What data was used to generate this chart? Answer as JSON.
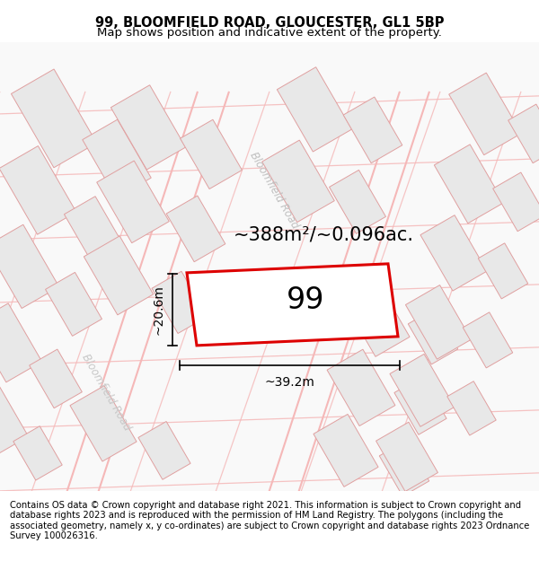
{
  "title_line1": "99, BLOOMFIELD ROAD, GLOUCESTER, GL1 5BP",
  "title_line2": "Map shows position and indicative extent of the property.",
  "footer_text": "Contains OS data © Crown copyright and database right 2021. This information is subject to Crown copyright and database rights 2023 and is reproduced with the permission of HM Land Registry. The polygons (including the associated geometry, namely x, y co-ordinates) are subject to Crown copyright and database rights 2023 Ordnance Survey 100026316.",
  "area_label": "~388m²/~0.096ac.",
  "number_label": "99",
  "width_label": "~39.2m",
  "height_label": "~20.6m",
  "road_label_diag": "Bloomfield Road",
  "road_label_vert": "Bloomfield Road",
  "bg_color": "#ffffff",
  "map_bg": "#f9f9f9",
  "plot_outline_color": "#dd0000",
  "road_line_color": "#f5b8b8",
  "building_fill": "#e8e8e8",
  "building_outline": "#e0a0a0",
  "dim_color": "#000000",
  "title_fontsize": 10.5,
  "subtitle_fontsize": 9.5,
  "footer_fontsize": 7.2,
  "area_fontsize": 15,
  "number_fontsize": 24,
  "dim_label_fontsize": 10,
  "road_fontsize": 8.5
}
